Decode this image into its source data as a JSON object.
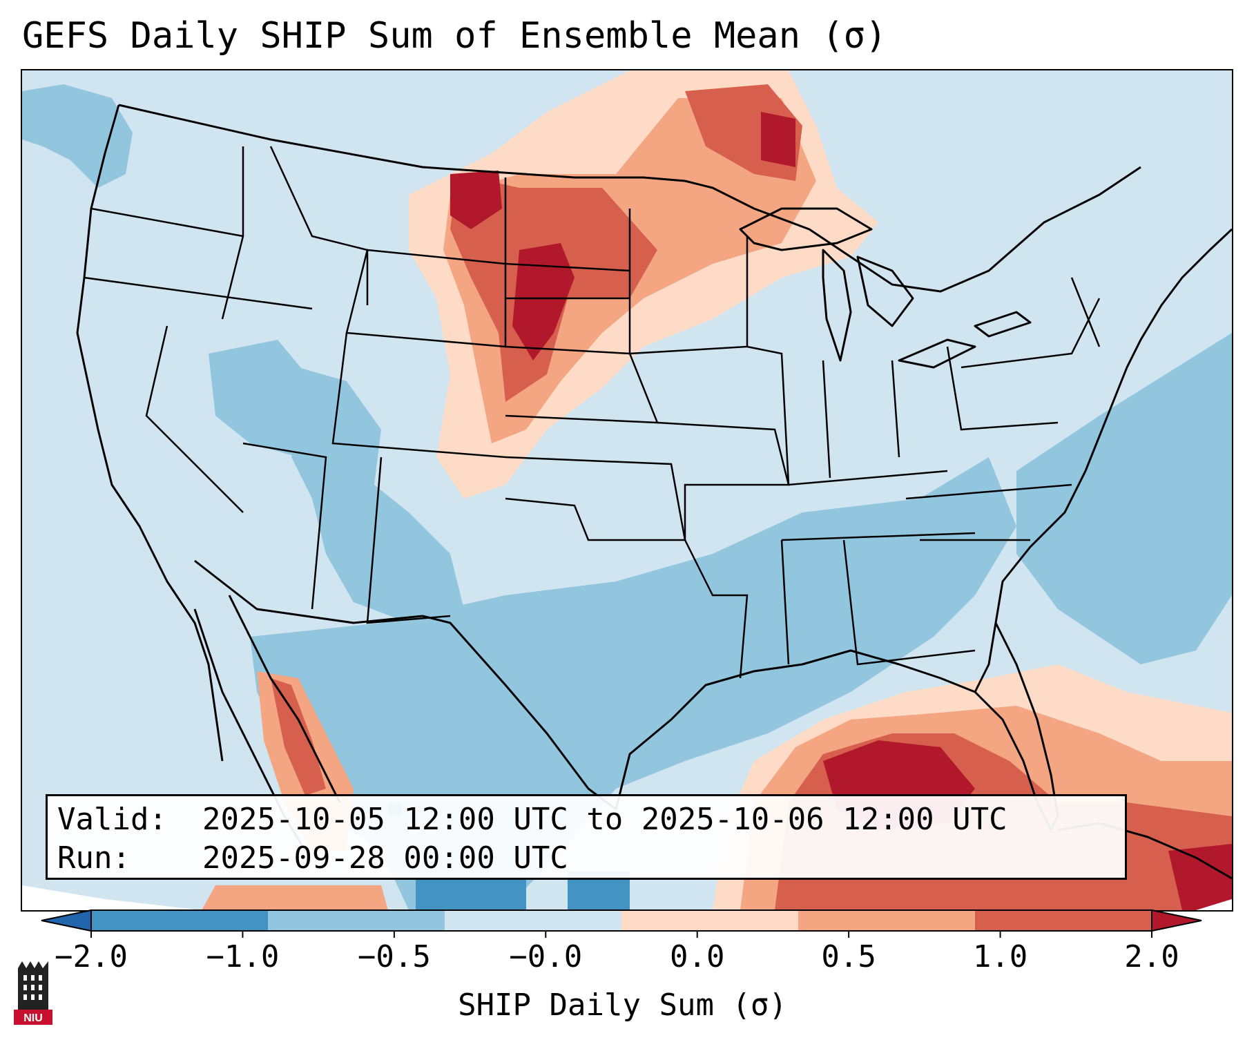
{
  "title": "GEFS Daily SHIP Sum of Ensemble Mean (σ)",
  "info": {
    "valid_label": "Valid:",
    "valid_value": "2025-10-05 12:00 UTC to 2025-10-06 12:00 UTC",
    "run_label": "Run:",
    "run_value": "2025-09-28 00:00 UTC"
  },
  "colorbar": {
    "label": "SHIP Daily Sum (σ)",
    "ticks": [
      "−2.0",
      "−1.0",
      "−0.5",
      "−0.0",
      "0.0",
      "0.5",
      "1.0",
      "2.0"
    ],
    "colors": [
      "#4393c3",
      "#92c5de",
      "#d1e5f0",
      "#fddbc7",
      "#f4a582",
      "#d6604d"
    ],
    "extend_low_color": "#2166ac",
    "extend_high_color": "#b2182b"
  },
  "colors": {
    "background_light_blue": "#d1e5f0",
    "mid_blue": "#92c5de",
    "blue": "#4393c3",
    "light_red": "#fddbc7",
    "salmon": "#f4a582",
    "red": "#d6604d",
    "dark_red": "#b2182b"
  },
  "logo": {
    "text": "NIU",
    "icon": "niu-tower-logo-icon"
  }
}
